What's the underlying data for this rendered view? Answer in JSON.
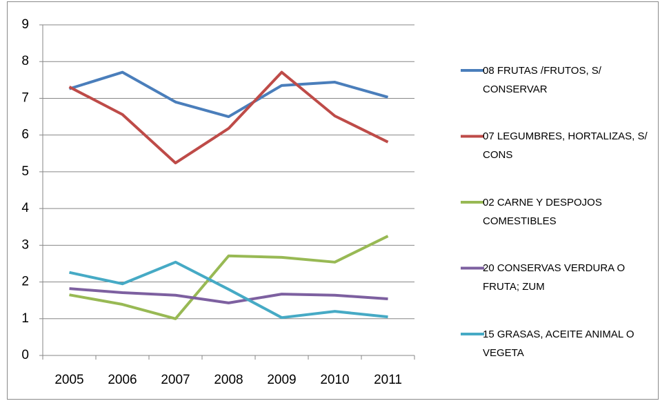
{
  "chart_data": {
    "type": "line",
    "categories": [
      "2005",
      "2006",
      "2007",
      "2008",
      "2009",
      "2010",
      "2011"
    ],
    "ylim": [
      0,
      9
    ],
    "yticks": [
      0,
      1,
      2,
      3,
      4,
      5,
      6,
      7,
      8,
      9
    ],
    "grid": true,
    "legend": "right",
    "series": [
      {
        "name": "08 FRUTAS /FRUTOS, S/ CONSERVAR",
        "color": "#4a7ebb",
        "values": [
          7.26,
          7.71,
          6.9,
          6.5,
          7.35,
          7.44,
          7.03
        ]
      },
      {
        "name": "07 LEGUMBRES, HORTALIZAS, S/ CONS",
        "color": "#be4b48",
        "values": [
          7.31,
          6.56,
          5.24,
          6.18,
          7.71,
          6.52,
          5.81
        ]
      },
      {
        "name": "02 CARNE Y DESPOJOS COMESTIBLES",
        "color": "#98b954",
        "values": [
          1.65,
          1.39,
          1.0,
          2.71,
          2.67,
          2.54,
          3.25
        ]
      },
      {
        "name": "20 CONSERVAS VERDURA O FRUTA; ZUM",
        "color": "#7d60a0",
        "values": [
          1.82,
          1.71,
          1.64,
          1.43,
          1.67,
          1.64,
          1.54
        ]
      },
      {
        "name": "15 GRASAS, ACEITE ANIMAL O VEGETA",
        "color": "#46aac5",
        "values": [
          2.26,
          1.95,
          2.54,
          1.8,
          1.03,
          1.2,
          1.05
        ]
      }
    ]
  }
}
